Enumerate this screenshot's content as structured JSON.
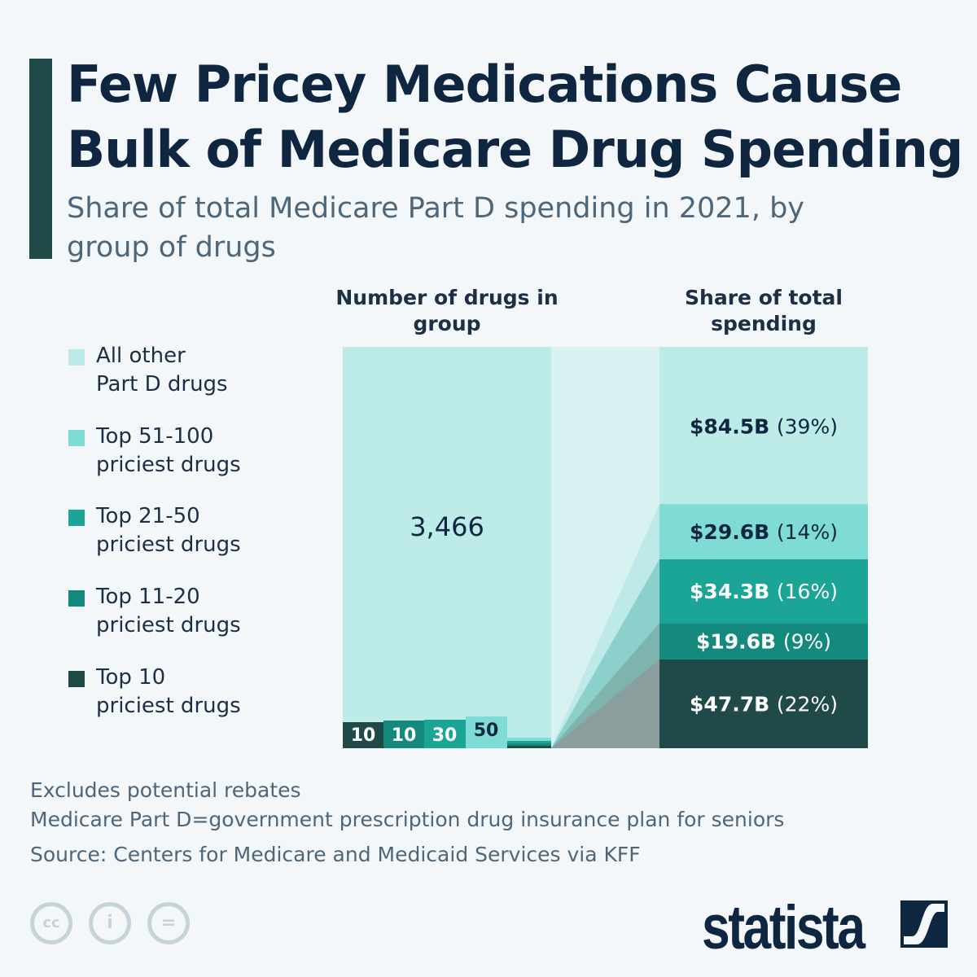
{
  "title": "Few Pricey Medications Cause Bulk of Medicare Drug Spending",
  "subtitle": "Share of total Medicare Part D spending in 2021, by group of drugs",
  "chart_data": {
    "type": "bar",
    "column_headers": [
      "Number of drugs in group",
      "Share of total spending"
    ],
    "categories": [
      "Top 10 priciest drugs",
      "Top 11-20 priciest drugs",
      "Top 21-50 priciest drugs",
      "Top 51-100 priciest drugs",
      "All other Part D drugs"
    ],
    "legend_labels": [
      "All other\nPart D drugs",
      "Top 51-100\npriciest drugs",
      "Top 21-50\npriciest drugs",
      "Top 11-20\npriciest drugs",
      "Top 10\npriciest drugs"
    ],
    "drug_counts": [
      10,
      10,
      30,
      50,
      3466
    ],
    "drug_count_labels": [
      "10",
      "10",
      "30",
      "50",
      "3,466"
    ],
    "spending_billion": [
      47.7,
      19.6,
      34.3,
      29.6,
      84.5
    ],
    "spending_labels": [
      "$47.7B",
      "$19.6B",
      "$34.3B",
      "$29.6B",
      "$84.5B"
    ],
    "share_labels": [
      "(22%)",
      "(9%)",
      "(16%)",
      "(14%)",
      "(39%)"
    ],
    "share_percent": [
      22,
      9,
      16,
      14,
      39
    ],
    "colors": [
      "#1f4a47",
      "#148a7e",
      "#1aa597",
      "#7edcd4",
      "#bdebe8"
    ],
    "legend_placement": "left"
  },
  "footer": {
    "note1": "Excludes potential rebates",
    "note2": "Medicare Part D=government prescription drug insurance plan for seniors",
    "source": "Source: Centers for Medicare and Medicaid Services via KFF"
  },
  "brand": "statista",
  "license_icons": [
    "cc-icon",
    "attribution-icon",
    "no-derivatives-icon"
  ]
}
